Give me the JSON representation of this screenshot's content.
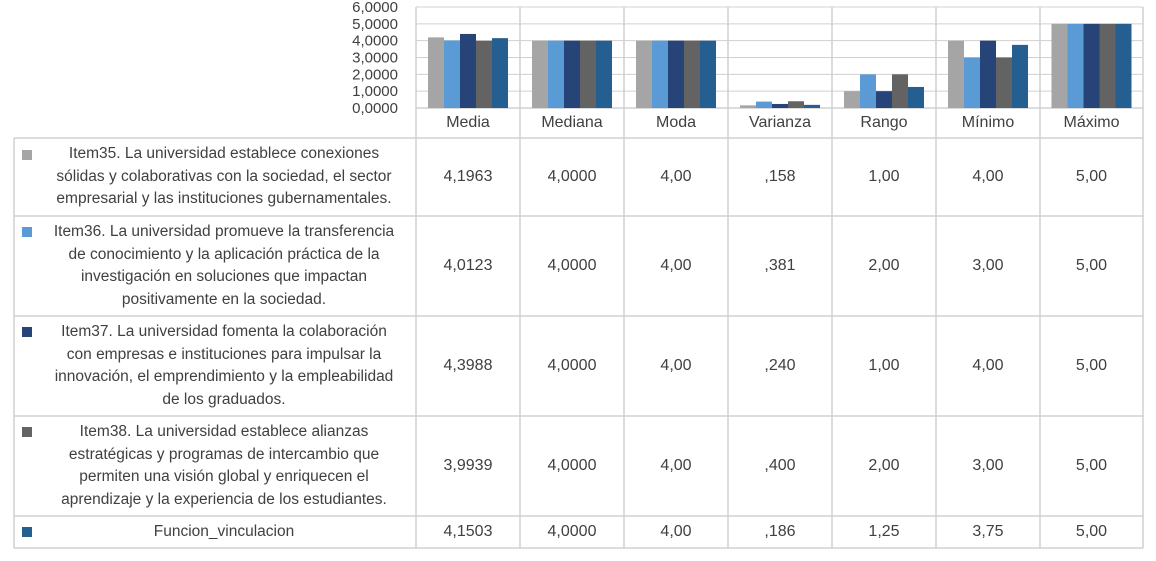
{
  "chart_data": {
    "type": "bar",
    "categories": [
      "Media",
      "Mediana",
      "Moda",
      "Varianza",
      "Rango",
      "Mínimo",
      "Máximo"
    ],
    "y_ticks": [
      "0,0000",
      "1,0000",
      "2,0000",
      "3,0000",
      "4,0000",
      "5,0000",
      "6,0000"
    ],
    "ylim": [
      0,
      6
    ],
    "series": [
      {
        "name": "Item35. La universidad establece conexiones sólidas y colaborativas con la sociedad, el sector empresarial y las instituciones gubernamentales.",
        "label_lines": [
          "Item35. La universidad establece conexiones",
          "sólidas y colaborativas con la sociedad, el sector",
          "empresarial y las instituciones gubernamentales."
        ],
        "color": "#a5a5a5",
        "values": [
          4.1963,
          4.0,
          4.0,
          0.158,
          1.0,
          4.0,
          5.0
        ],
        "labels": [
          "4,1963",
          "4,0000",
          "4,00",
          ",158",
          "1,00",
          "4,00",
          "5,00"
        ]
      },
      {
        "name": "Item36. La universidad promueve la transferencia de conocimiento y la aplicación práctica de la investigación en soluciones que impactan positivamente en la sociedad.",
        "label_lines": [
          "Item36. La universidad promueve la transferencia",
          "de conocimiento y la aplicación práctica de la",
          "investigación en soluciones que impactan",
          "positivamente en la sociedad."
        ],
        "color": "#5b9bd5",
        "values": [
          4.0123,
          4.0,
          4.0,
          0.381,
          2.0,
          3.0,
          5.0
        ],
        "labels": [
          "4,0123",
          "4,0000",
          "4,00",
          ",381",
          "2,00",
          "3,00",
          "5,00"
        ]
      },
      {
        "name": "Item37. La universidad fomenta la colaboración con empresas e instituciones para impulsar la innovación, el emprendimiento y la empleabilidad de los graduados.",
        "label_lines": [
          "Item37. La universidad fomenta la colaboración",
          "con empresas e instituciones para impulsar la",
          "innovación, el emprendimiento y la empleabilidad",
          "de los graduados."
        ],
        "color": "#264478",
        "values": [
          4.3988,
          4.0,
          4.0,
          0.24,
          1.0,
          4.0,
          5.0
        ],
        "labels": [
          "4,3988",
          "4,0000",
          "4,00",
          ",240",
          "1,00",
          "4,00",
          "5,00"
        ]
      },
      {
        "name": "Item38. La universidad establece alianzas estratégicas y programas de intercambio que permiten una visión global y enriquecen el aprendizaje y la experiencia de los estudiantes.",
        "label_lines": [
          "Item38. La universidad establece alianzas",
          "estratégicas y programas de intercambio que",
          "permiten una visión global y enriquecen el",
          "aprendizaje y la experiencia de los estudiantes."
        ],
        "color": "#636363",
        "values": [
          3.9939,
          4.0,
          4.0,
          0.4,
          2.0,
          3.0,
          5.0
        ],
        "labels": [
          "3,9939",
          "4,0000",
          "4,00",
          ",400",
          "2,00",
          "3,00",
          "5,00"
        ]
      },
      {
        "name": "Funcion_vinculacion",
        "label_lines": [
          "Funcion_vinculacion"
        ],
        "color": "#255e91",
        "values": [
          4.1503,
          4.0,
          4.0,
          0.186,
          1.25,
          3.75,
          5.0
        ],
        "labels": [
          "4,1503",
          "4,0000",
          "4,00",
          ",186",
          "1,25",
          "3,75",
          "5,00"
        ]
      }
    ]
  }
}
